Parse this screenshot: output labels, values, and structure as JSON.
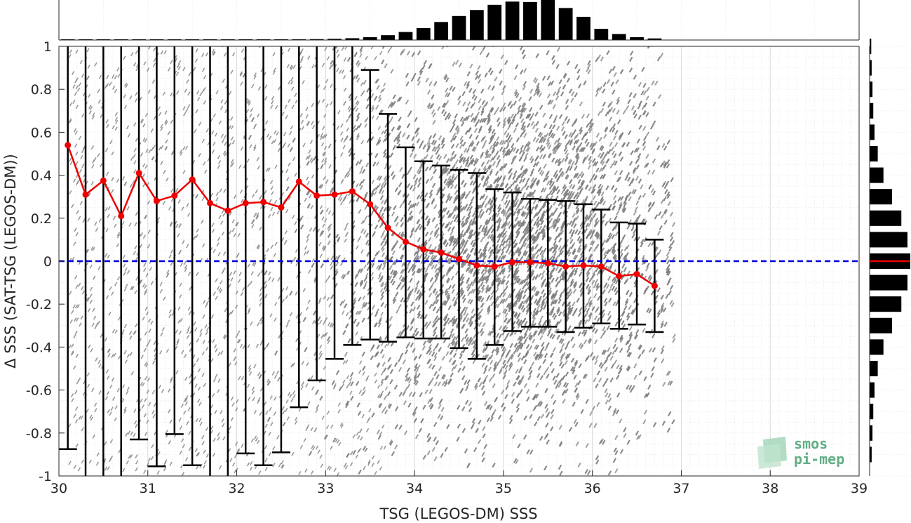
{
  "chart_data": {
    "type": "scatter",
    "xlabel": "TSG (LEGOS-DM) SSS",
    "ylabel": "Δ SSS (SAT-TSG (LEGOS-DM))",
    "xlim": [
      30,
      39
    ],
    "ylim": [
      -1,
      1
    ],
    "x_ticks": [
      30,
      31,
      32,
      33,
      34,
      35,
      36,
      37,
      38,
      39
    ],
    "y_ticks": [
      -1,
      -0.8,
      -0.6,
      -0.4,
      -0.2,
      0,
      0.2,
      0.4,
      0.6,
      0.8,
      1
    ],
    "grid": true,
    "reference_line": {
      "y": 0,
      "style": "dashed",
      "color": "#0000dd"
    },
    "colors": {
      "scatter": "#808080",
      "mean": "#ee0000",
      "errorbar": "#000000",
      "histogram": "#000000",
      "zero_line": "#0000dd"
    },
    "mean_series": {
      "x": [
        30.1,
        30.3,
        30.5,
        30.7,
        30.9,
        31.1,
        31.3,
        31.5,
        31.7,
        31.9,
        32.1,
        32.3,
        32.5,
        32.7,
        32.9,
        33.1,
        33.3,
        33.5,
        33.7,
        33.9,
        34.1,
        34.3,
        34.5,
        34.7,
        34.9,
        35.1,
        35.3,
        35.5,
        35.7,
        35.9,
        36.1,
        36.3,
        36.5,
        36.7
      ],
      "y": [
        0.54,
        0.31,
        0.375,
        0.21,
        0.41,
        0.28,
        0.305,
        0.38,
        0.27,
        0.235,
        0.27,
        0.275,
        0.25,
        0.37,
        0.305,
        0.31,
        0.325,
        0.265,
        0.155,
        0.09,
        0.055,
        0.04,
        0.01,
        -0.02,
        -0.025,
        -0.005,
        -0.005,
        -0.01,
        -0.025,
        -0.02,
        -0.025,
        -0.07,
        -0.06,
        -0.115
      ]
    },
    "error_bars": {
      "upper": [
        1.2,
        1.2,
        1.2,
        1.2,
        1.2,
        1.2,
        1.2,
        1.2,
        1.2,
        1.2,
        1.2,
        1.2,
        1.2,
        1.2,
        1.2,
        1.2,
        1.2,
        0.89,
        0.685,
        0.53,
        0.465,
        0.445,
        0.425,
        0.41,
        0.335,
        0.32,
        0.29,
        0.285,
        0.28,
        0.265,
        0.24,
        0.18,
        0.175,
        0.1
      ],
      "lower": [
        -0.875,
        -1.2,
        -1.2,
        -1.2,
        -0.83,
        -0.955,
        -0.805,
        -0.95,
        -1.2,
        -1.2,
        -0.895,
        -0.95,
        -0.89,
        -0.68,
        -0.555,
        -0.455,
        -0.39,
        -0.365,
        -0.375,
        -0.355,
        -0.36,
        -0.36,
        -0.405,
        -0.455,
        -0.39,
        -0.325,
        -0.305,
        -0.305,
        -0.33,
        -0.31,
        -0.29,
        -0.315,
        -0.295,
        -0.33
      ]
    },
    "top_histogram": {
      "x": [
        30.1,
        30.3,
        30.5,
        30.7,
        30.9,
        31.1,
        31.3,
        31.5,
        31.7,
        31.9,
        32.1,
        32.3,
        32.5,
        32.7,
        32.9,
        33.1,
        33.3,
        33.5,
        33.7,
        33.9,
        34.1,
        34.3,
        34.5,
        34.7,
        34.9,
        35.1,
        35.3,
        35.5,
        35.7,
        35.9,
        36.1,
        36.3,
        36.5,
        36.7
      ],
      "values": [
        0.002,
        0.002,
        0.003,
        0.003,
        0.004,
        0.004,
        0.005,
        0.006,
        0.007,
        0.008,
        0.01,
        0.012,
        0.015,
        0.018,
        0.022,
        0.03,
        0.045,
        0.07,
        0.12,
        0.2,
        0.3,
        0.45,
        0.6,
        0.75,
        0.88,
        0.96,
        0.95,
        1.0,
        0.8,
        0.58,
        0.28,
        0.15,
        0.07,
        0.04
      ]
    },
    "right_histogram": {
      "y": [
        -0.9,
        -0.8,
        -0.7,
        -0.6,
        -0.5,
        -0.4,
        -0.3,
        -0.2,
        -0.1,
        0,
        0.1,
        0.2,
        0.3,
        0.4,
        0.5,
        0.6,
        0.7,
        0.8,
        0.9,
        1.0
      ],
      "values": [
        0.05,
        0.07,
        0.09,
        0.12,
        0.2,
        0.34,
        0.55,
        0.78,
        0.93,
        1.0,
        0.93,
        0.78,
        0.55,
        0.34,
        0.2,
        0.12,
        0.09,
        0.07,
        0.05,
        0.04
      ]
    }
  },
  "logo": {
    "line1": "smos",
    "line2": "pi-mep"
  }
}
